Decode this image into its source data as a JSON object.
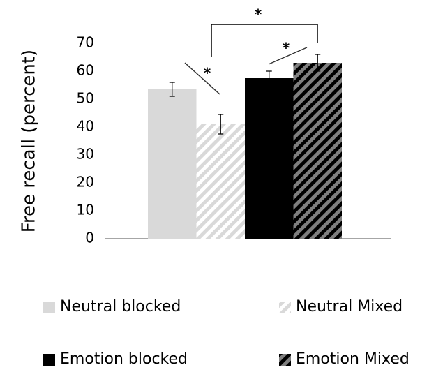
{
  "chart_data": {
    "type": "bar",
    "y_label": "Free recall (percent)",
    "categories": [
      null
    ],
    "series": [
      {
        "name": "Neutral blocked",
        "color": "#d9d9d9",
        "values": [
          53.5
        ],
        "errors": [
          2.5
        ]
      },
      {
        "name": "Neutral Mixed",
        "color": "#d9d9d9",
        "hatch": true,
        "hatch_background": "#ffffff",
        "values": [
          41
        ],
        "errors": [
          3.5
        ]
      },
      {
        "name": "Emotion blocked",
        "color": "#000000",
        "values": [
          57.5
        ],
        "errors": [
          2.5
        ]
      },
      {
        "name": "Emotion Mixed",
        "color": "#000000",
        "hatch": true,
        "hatch_background": "#7f7f7f",
        "values": [
          63
        ],
        "errors": [
          3
        ]
      }
    ],
    "ylim": [
      0,
      70
    ],
    "yticks": [
      0,
      10,
      20,
      30,
      40,
      50,
      60,
      70
    ],
    "grid": false,
    "annotations": [
      "*",
      "*",
      "*"
    ]
  }
}
